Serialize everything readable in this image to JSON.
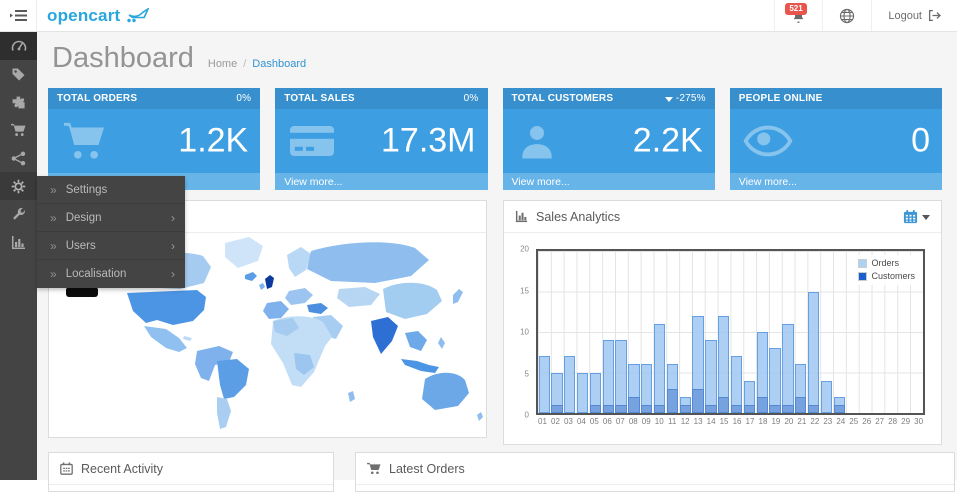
{
  "header": {
    "logo_text": "opencart",
    "notifications_badge": "521",
    "logout_label": "Logout"
  },
  "page": {
    "title": "Dashboard",
    "breadcrumb_home": "Home",
    "breadcrumb_separator": "/",
    "breadcrumb_current": "Dashboard"
  },
  "sidebar": {
    "items": [
      {
        "icon": "dashboard",
        "state": "active"
      },
      {
        "icon": "catalog-tag",
        "state": ""
      },
      {
        "icon": "extensions-puzzle",
        "state": ""
      },
      {
        "icon": "sales-cart",
        "state": ""
      },
      {
        "icon": "marketing-share",
        "state": ""
      },
      {
        "icon": "system-gear",
        "state": "open"
      },
      {
        "icon": "tools-wrench",
        "state": ""
      },
      {
        "icon": "reports-chart",
        "state": ""
      }
    ]
  },
  "submenu": {
    "items": [
      {
        "label": "Settings",
        "has_children": false
      },
      {
        "label": "Design",
        "has_children": true
      },
      {
        "label": "Users",
        "has_children": true
      },
      {
        "label": "Localisation",
        "has_children": true
      }
    ]
  },
  "tiles": [
    {
      "title": "TOTAL ORDERS",
      "change": "0%",
      "change_down": false,
      "value": "1.2K",
      "icon": "shopping-cart",
      "footer": "View more..."
    },
    {
      "title": "TOTAL SALES",
      "change": "0%",
      "change_down": false,
      "value": "17.3M",
      "icon": "credit-card",
      "footer": "View more..."
    },
    {
      "title": "TOTAL CUSTOMERS",
      "change": "-275%",
      "change_down": true,
      "value": "2.2K",
      "icon": "user",
      "footer": "View more..."
    },
    {
      "title": "PEOPLE ONLINE",
      "change": "",
      "change_down": false,
      "value": "0",
      "icon": "eye",
      "footer": "View more..."
    }
  ],
  "panels": {
    "sales_title": "Sales Analytics",
    "recent_title": "Recent Activity",
    "orders_title": "Latest Orders"
  },
  "chart_data": {
    "type": "bar",
    "title": "Sales Analytics",
    "categories": [
      "01",
      "02",
      "03",
      "04",
      "05",
      "06",
      "07",
      "08",
      "09",
      "10",
      "11",
      "12",
      "13",
      "14",
      "15",
      "16",
      "17",
      "18",
      "19",
      "20",
      "21",
      "22",
      "23",
      "24",
      "25",
      "26",
      "27",
      "28",
      "29",
      "30"
    ],
    "series": [
      {
        "name": "Orders",
        "color": "#a9d2f5",
        "values": [
          7,
          5,
          7,
          5,
          5,
          9,
          9,
          6,
          6,
          11,
          6,
          2,
          12,
          9,
          12,
          7,
          4,
          10,
          8,
          11,
          6,
          15,
          4,
          2,
          0,
          0,
          0,
          0,
          0,
          0
        ]
      },
      {
        "name": "Customers",
        "color": "#1b5fce",
        "values": [
          0,
          1,
          0,
          0,
          1,
          1,
          1,
          2,
          1,
          1,
          3,
          1,
          3,
          1,
          2,
          1,
          1,
          2,
          1,
          1,
          2,
          1,
          0,
          1,
          0,
          0,
          0,
          0,
          0,
          0
        ]
      }
    ],
    "ylim": [
      0,
      20
    ],
    "yticks": [
      0,
      5,
      10,
      15,
      20
    ],
    "grid": true,
    "legend_position": "top-right"
  },
  "colors": {
    "brand_blue": "#29a6de",
    "tile_blue": "#3d9fe2",
    "badge_red": "#e8554c",
    "sidebar_dark": "#444444",
    "link_blue": "#3193d4"
  }
}
